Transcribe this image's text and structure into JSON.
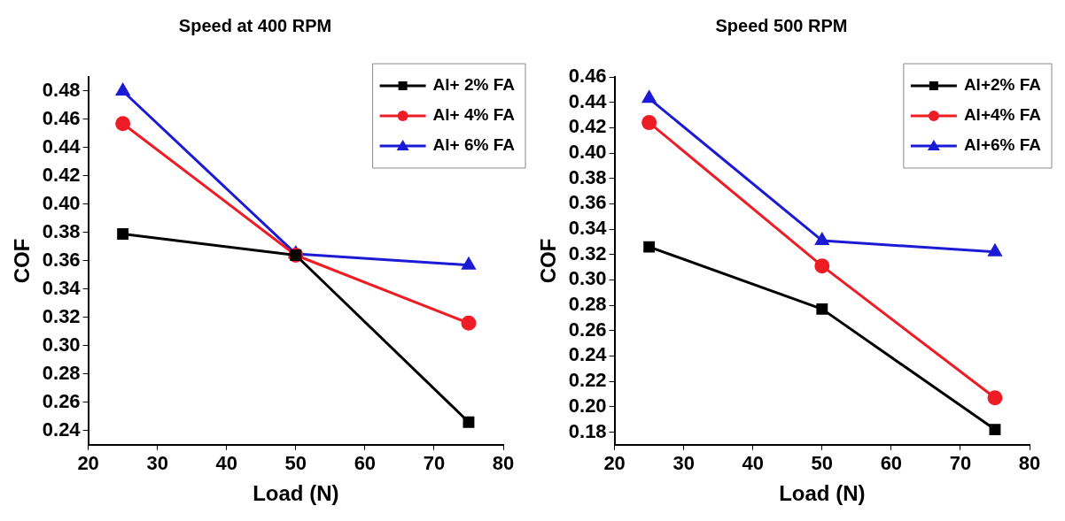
{
  "chart_data": [
    {
      "type": "line",
      "title": "Speed at 400 RPM",
      "xlabel": "Load (N)",
      "ylabel": "COF",
      "x": [
        25,
        50,
        75
      ],
      "xlim": [
        20,
        80
      ],
      "xticks": [
        20,
        30,
        40,
        50,
        60,
        70,
        80
      ],
      "ylim": [
        0.23,
        0.49
      ],
      "yticks": [
        0.24,
        0.26,
        0.28,
        {
          "value": 0.3,
          "label": "0.30"
        },
        0.32,
        0.34,
        0.36,
        0.38,
        {
          "value": 0.4,
          "label": "0.40"
        },
        0.42,
        0.44,
        0.46,
        0.48
      ],
      "grid": false,
      "legend": "top right",
      "line_style": "solid",
      "series": [
        {
          "name": "Al+ 2% FA",
          "color": "#000000",
          "marker": "square",
          "values": [
            0.379,
            0.364,
            0.246
          ]
        },
        {
          "name": "Al+ 4% FA",
          "color": "#ee1c25",
          "marker": "circle",
          "values": [
            0.457,
            0.364,
            0.316
          ]
        },
        {
          "name": "Al+ 6% FA",
          "color": "#1b1bd6",
          "marker": "triangle",
          "values": [
            0.48,
            0.365,
            0.357
          ]
        }
      ]
    },
    {
      "type": "line",
      "title": "Speed 500 RPM",
      "xlabel": "Load (N)",
      "ylabel": "COF",
      "x": [
        25,
        50,
        75
      ],
      "xlim": [
        20,
        80
      ],
      "xticks": [
        20,
        30,
        40,
        50,
        60,
        70,
        80
      ],
      "ylim": [
        0.17,
        0.46
      ],
      "yticks": [
        0.18,
        {
          "value": 0.2,
          "label": "0.20"
        },
        0.22,
        0.24,
        0.26,
        0.28,
        {
          "value": 0.3,
          "label": "0.30"
        },
        0.32,
        0.34,
        0.36,
        0.38,
        {
          "value": 0.4,
          "label": "0.40"
        },
        0.42,
        0.44,
        0.46
      ],
      "grid": false,
      "legend": "top right",
      "line_style": "solid",
      "series": [
        {
          "name": "Al+2% FA",
          "color": "#000000",
          "marker": "square",
          "values": [
            0.326,
            0.277,
            0.182
          ]
        },
        {
          "name": "Al+4% FA",
          "color": "#ee1c25",
          "marker": "circle",
          "values": [
            0.424,
            0.311,
            0.207
          ]
        },
        {
          "name": "Al+6% FA",
          "color": "#1b1bd6",
          "marker": "triangle",
          "values": [
            0.443,
            0.331,
            0.322
          ]
        }
      ]
    }
  ]
}
